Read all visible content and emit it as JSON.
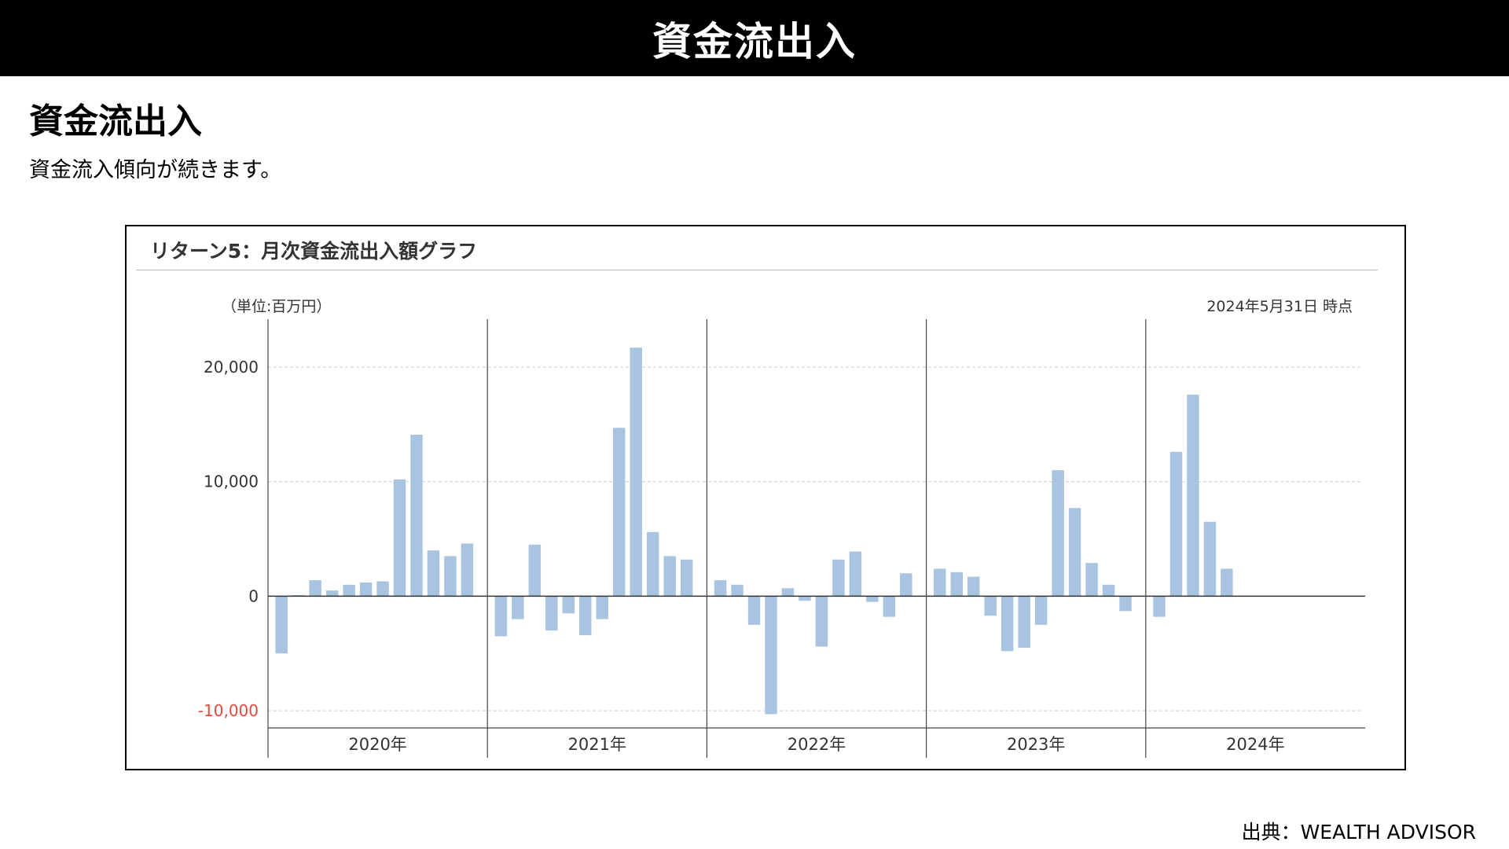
{
  "header": {
    "title": "資金流出入"
  },
  "section": {
    "heading": "資金流出入",
    "text": "資金流入傾向が続きます。"
  },
  "chart_box": {
    "title": "リターン5：月次資金流出入額グラフ",
    "unit_label": "（単位:百万円）",
    "as_of": "2024年5月31日 時点"
  },
  "source": "出典：WEALTH ADVISOR",
  "colors": {
    "bar": "#a9c4e0",
    "negative_tick": "#e8473c",
    "axis": "#444444",
    "grid": "#cccccc"
  },
  "chart_data": {
    "type": "bar",
    "title": "リターン5：月次資金流出入額グラフ",
    "ylabel": "（単位:百万円）",
    "ylim": [
      -11500,
      23500
    ],
    "yticks": [
      20000,
      10000,
      0,
      -10000
    ],
    "ytick_labels": [
      "20,000",
      "10,000",
      "0",
      "-10,000"
    ],
    "grid": true,
    "years": [
      "2020年",
      "2021年",
      "2022年",
      "2023年",
      "2024年"
    ],
    "series": [
      {
        "year": "2020年",
        "values": [
          -5000,
          100,
          1400,
          500,
          1000,
          1200,
          1300,
          10200,
          14100,
          4000,
          3500,
          4600
        ]
      },
      {
        "year": "2021年",
        "values": [
          -3500,
          -2000,
          4500,
          -3000,
          -1500,
          -3400,
          -2000,
          14700,
          21700,
          5600,
          3500,
          3200
        ]
      },
      {
        "year": "2022年",
        "values": [
          1400,
          1000,
          -2500,
          -10300,
          700,
          -400,
          -4400,
          3200,
          3900,
          -500,
          -1800,
          2000
        ]
      },
      {
        "year": "2023年",
        "values": [
          2400,
          2100,
          1700,
          -1700,
          -4800,
          -4500,
          -2500,
          11000,
          7700,
          2900,
          1000,
          -1300
        ]
      },
      {
        "year": "2024年",
        "values": [
          -1800,
          12600,
          17600,
          6500,
          2400
        ]
      }
    ]
  }
}
